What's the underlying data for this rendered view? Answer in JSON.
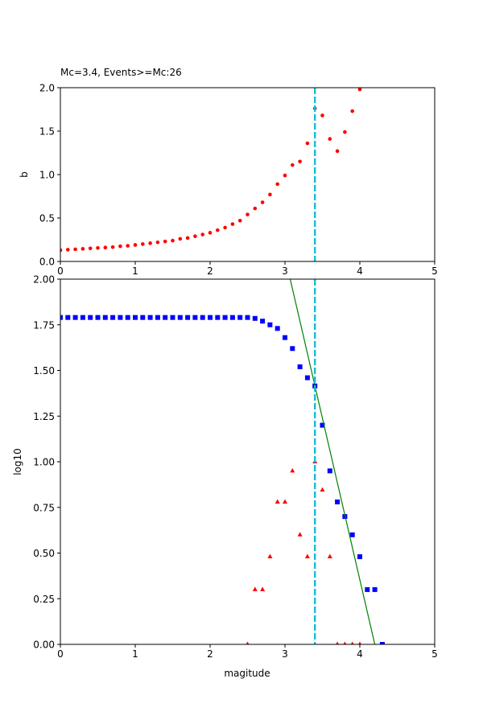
{
  "chart_data": [
    {
      "type": "scatter",
      "title": "Mc=3.4, Events>=Mc:26",
      "xlabel": "",
      "ylabel": "b",
      "xlim": [
        0,
        5
      ],
      "ylim": [
        0,
        2.0
      ],
      "xticks": [
        "0",
        "1",
        "2",
        "3",
        "4",
        "5"
      ],
      "yticks": [
        "0.0",
        "0.5",
        "1.0",
        "1.5",
        "2.0"
      ],
      "grid": false,
      "series": [
        {
          "marker": "circle",
          "color": "#ff0000",
          "x": [
            0.0,
            0.1,
            0.2,
            0.3,
            0.4,
            0.5,
            0.6,
            0.7,
            0.8,
            0.9,
            1.0,
            1.1,
            1.2,
            1.3,
            1.4,
            1.5,
            1.6,
            1.7,
            1.8,
            1.9,
            2.0,
            2.1,
            2.2,
            2.3,
            2.4,
            2.5,
            2.6,
            2.7,
            2.8,
            2.9,
            3.0,
            3.1,
            3.2,
            3.3,
            3.4,
            3.5,
            3.6,
            3.7,
            3.8,
            3.9,
            4.0
          ],
          "y": [
            0.13,
            0.135,
            0.14,
            0.145,
            0.15,
            0.155,
            0.16,
            0.165,
            0.175,
            0.18,
            0.19,
            0.2,
            0.21,
            0.22,
            0.23,
            0.24,
            0.26,
            0.27,
            0.29,
            0.31,
            0.33,
            0.36,
            0.39,
            0.43,
            0.47,
            0.54,
            0.61,
            0.68,
            0.77,
            0.89,
            0.99,
            1.11,
            1.15,
            1.36,
            1.76,
            1.68,
            1.41,
            1.27,
            1.49,
            1.73,
            1.98
          ]
        }
      ],
      "vline": {
        "x": 3.4,
        "color": "#17becf",
        "style": "dashed"
      }
    },
    {
      "type": "scatter",
      "title": "",
      "xlabel": "magitude",
      "ylabel": "log10",
      "xlim": [
        0,
        5
      ],
      "ylim": [
        0,
        2.0
      ],
      "xticks": [
        "0",
        "1",
        "2",
        "3",
        "4",
        "5"
      ],
      "yticks": [
        "0.00",
        "0.25",
        "0.50",
        "0.75",
        "1.00",
        "1.25",
        "1.50",
        "1.75",
        "2.00"
      ],
      "grid": false,
      "series": [
        {
          "marker": "square",
          "color": "#0000ff",
          "x": [
            0.0,
            0.1,
            0.2,
            0.3,
            0.4,
            0.5,
            0.6,
            0.7,
            0.8,
            0.9,
            1.0,
            1.1,
            1.2,
            1.3,
            1.4,
            1.5,
            1.6,
            1.7,
            1.8,
            1.9,
            2.0,
            2.1,
            2.2,
            2.3,
            2.4,
            2.5,
            2.6,
            2.7,
            2.8,
            2.9,
            3.0,
            3.1,
            3.2,
            3.3,
            3.4,
            3.5,
            3.6,
            3.7,
            3.8,
            3.9,
            4.0,
            4.1,
            4.2,
            4.3
          ],
          "y": [
            1.79,
            1.79,
            1.79,
            1.79,
            1.79,
            1.79,
            1.79,
            1.79,
            1.79,
            1.79,
            1.79,
            1.79,
            1.79,
            1.79,
            1.79,
            1.79,
            1.79,
            1.79,
            1.79,
            1.79,
            1.79,
            1.79,
            1.79,
            1.79,
            1.79,
            1.79,
            1.785,
            1.77,
            1.75,
            1.73,
            1.68,
            1.62,
            1.52,
            1.46,
            1.415,
            1.2,
            0.95,
            0.78,
            0.7,
            0.6,
            0.48,
            0.3,
            0.3,
            0.0
          ]
        },
        {
          "marker": "triangle",
          "color": "#ff0000",
          "x": [
            2.5,
            2.6,
            2.7,
            2.8,
            2.9,
            3.0,
            3.1,
            3.2,
            3.3,
            3.4,
            3.5,
            3.6,
            3.7,
            3.8,
            3.9,
            4.0
          ],
          "y": [
            0.0,
            0.3,
            0.3,
            0.48,
            0.78,
            0.78,
            0.95,
            0.6,
            0.48,
            1.0,
            0.845,
            0.48,
            0.0,
            0.0,
            0.0,
            0.0
          ]
        },
        {
          "type": "line",
          "color": "#008000",
          "x": [
            3.07,
            4.2
          ],
          "y": [
            2.0,
            0.0
          ]
        }
      ],
      "vline": {
        "x": 3.4,
        "color": "#17becf",
        "style": "dashed"
      }
    }
  ]
}
